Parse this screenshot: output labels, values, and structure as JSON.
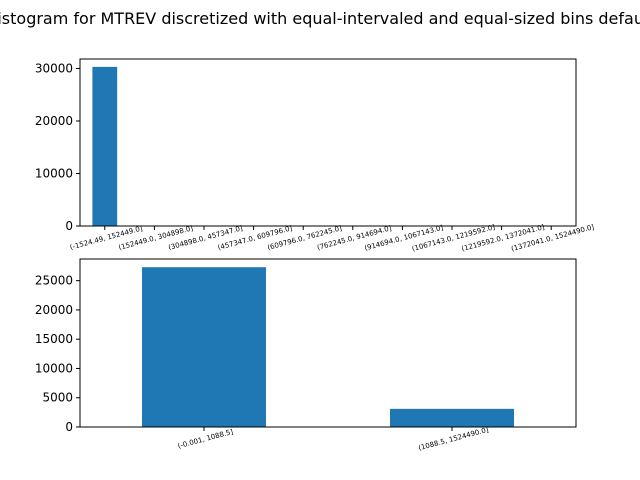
{
  "figure": {
    "title": "Histogram for MTREV discretized with equal-intervaled and equal-sized bins default"
  },
  "colors": {
    "bar": "#1f77b4"
  },
  "chart_data": [
    {
      "type": "bar",
      "title": "",
      "xlabel": "",
      "ylabel": "",
      "categories": [
        "(-1524.49, 152449.0]",
        "(152449.0, 304898.0]",
        "(304898.0, 457347.0]",
        "(457347.0, 609796.0]",
        "(609796.0, 762245.0]",
        "(762245.0, 914694.0]",
        "(914694.0, 1067143.0]",
        "(1067143.0, 1219592.0]",
        "(1219592.0, 1372041.0]",
        "(1372041.0, 1524490.0]"
      ],
      "values": [
        30300,
        0,
        0,
        0,
        0,
        0,
        0,
        0,
        0,
        0
      ],
      "ylim": [
        0,
        31800
      ],
      "yticks": [
        0,
        10000,
        20000,
        30000
      ],
      "ytick_labels": [
        "0",
        "10000",
        "20000",
        "30000"
      ],
      "bar_width": 0.5,
      "grid": false,
      "legend": "none"
    },
    {
      "type": "bar",
      "title": "",
      "xlabel": "",
      "ylabel": "",
      "categories": [
        "(-0.001, 1088.5]",
        "(1088.5, 1524490.0]"
      ],
      "values": [
        27300,
        3100
      ],
      "ylim": [
        0,
        28700
      ],
      "yticks": [
        0,
        5000,
        10000,
        15000,
        20000,
        25000
      ],
      "ytick_labels": [
        "0",
        "5000",
        "10000",
        "15000",
        "20000",
        "25000"
      ],
      "bar_width": 0.5,
      "grid": false,
      "legend": "none"
    }
  ]
}
